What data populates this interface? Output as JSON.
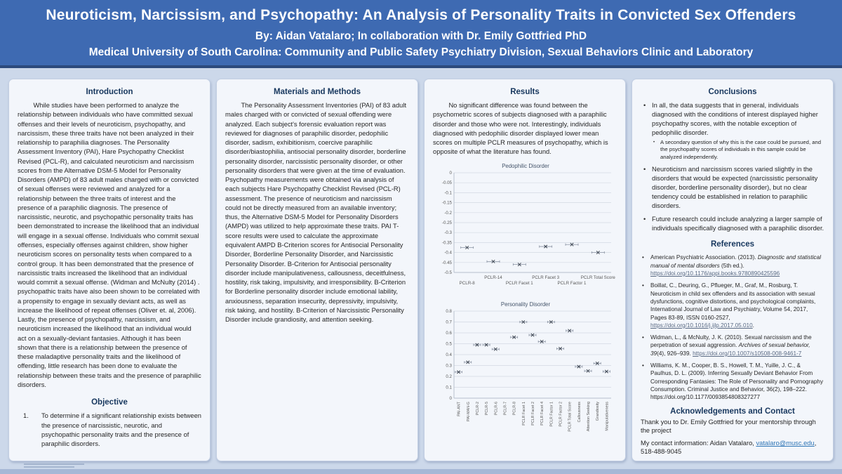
{
  "header": {
    "title": "Neuroticism, Narcissism, and Psychopathy: An Analysis of Personality Traits in Convicted Sex Offenders",
    "byline": "By: Aidan Vatalaro; In collaboration with Dr. Emily Gottfried PhD",
    "affiliation": "Medical University of South Carolina: Community and Public Safety Psychiatry Division, Sexual Behaviors Clinic and Laboratory"
  },
  "columns": {
    "introduction": {
      "heading": "Introduction",
      "body": "While studies have been performed to analyze the relationship between individuals who have committed sexual offenses and their levels of neuroticism, psychopathy, and narcissism, these three traits have not been analyzed in their relationship to paraphilia diagnoses. The Personality Assessment Inventory (PAI), Hare Psychopathy Checklist Revised (PCL-R), and calculated neuroticism and narcissism scores from the Alternative DSM-5 Model for Personality Disorders (AMPD) of 83 adult males charged with or convicted of sexual offenses were reviewed and analyzed for a relationship between the three traits of interest and the presence of a paraphilic diagnosis. The presence of narcissistic, neurotic, and psychopathic personality traits has been demonstrated to increase the likelihood that an individual will engage in a sexual offense. Individuals who commit sexual offenses, especially offenses against children, show higher neuroticism scores on personality tests when compared to a control group.  It has been demonstrated that the presence of narcissistic traits increased the likelihood that an individual would commit a sexual offense. (Widman and McNulty (2014) . psychopathic traits have also been shown to be correlated with a propensity to engage in sexually deviant acts, as well as increase the likelihood of repeat offenses (Oliver et. al, 2006). Lastly, the presence of psychopathy, narcissism, and neuroticism increased the likelihood that an individual would act on a sexually-deviant fantasies. Although it has been shown that there is a relationship between the presence of these maladaptive personality traits and the likelihood of offending, little research has been done to evaluate the relationship between these traits and the presence of paraphilic disorders."
    },
    "objective": {
      "heading": "Objective",
      "items": [
        {
          "number": "1.",
          "text": "To determine if a significant relationship exists between the presence of narcissistic, neurotic, and psychopathic personality traits and the presence of paraphilic disorders."
        }
      ]
    },
    "methods": {
      "heading": "Materials and Methods",
      "body": "The Personality Assessment Inventories (PAI) of 83 adult males charged with or convicted of sexual offending were analyzed. Each subject's forensic evaluation report was reviewed for diagnoses of paraphilic disorder, pedophilic disorder, sadism, exhibitionism, coercive paraphilic disorder/biastophilia, antisocial personality disorder, borderline personality disorder, narcissistic personality disorder, or other personality disorders that were given at the time of evaluation. Psychopathy measurements were obtained via analysis of each subjects Hare Psychopathy Checklist Revised (PCL-R) assessment. The presence of neuroticism and narcissism could not be directly measured from an available inventory; thus, the Alternative DSM-5 Model for Personality Disorders (AMPD) was utilized to help approximate these traits. PAI T-score results were used to calculate the approximate equivalent AMPD B-Criterion scores for Antisocial Personality Disorder, Borderline Personality Disorder, and Narcissistic Personality Disorder. B-Criterion for Antisocial personality disorder include manipulativeness, callousness, deceitfulness, hostility, risk taking, impulsivity, and irresponsibility. B-Criterion for Borderline personality disorder include emotional lability, anxiousness, separation insecurity, depressivity, impulsivity, risk taking, and hostility. B-Criterion of Narcissistic Personality Disorder include grandiosity, and attention seeking."
    },
    "results": {
      "heading": "Results",
      "body": "No significant difference was found between the psychometric scores of subjects diagnosed with a paraphilic disorder and those who were not. Interestingly, individuals diagnosed with pedophilic disorder displayed lower mean scores on multiple PCLR measures of psychopathy, which is opposite of what the literature has found."
    },
    "conclusions": {
      "heading": "Conclusions",
      "bullets": [
        "In all, the data suggests that in general, individuals diagnosed with the conditions of interest displayed higher psychopathy scores, with the notable exception of pedophilic disorder.",
        "Neuroticism and narcissism scores varied slightly in the disorders that would be expected (narcissistic personality disorder, borderline personality disorder), but no clear tendency could be established in relation to paraphilic disorders.",
        "Future research could include analyzing a larger sample of individuals specifically diagnosed with a paraphilic disorder."
      ],
      "sub_bullets": [
        "A secondary question of why this is the case could be pursued, and the psychopathy scores of individuals in this sample could be analyzed independently."
      ]
    },
    "references": {
      "heading": "References",
      "items": [
        {
          "parts": [
            "American Psychiatric Association. (2013). ",
            "Diagnostic and statistical manual of mental disorders",
            " (5th ed.). ",
            "https://doi.org/10.1176/appi.books.9780890425596"
          ]
        },
        {
          "parts": [
            "Boillat, C., Deuring, G., Pflueger, M., Graf, M., Rosburg, T. Neuroticism in child sex offenders and its association with sexual dysfunctions, cognitive distortions, and psychological complaints, International Journal of Law and Psychiatry, Volume 54, 2017, Pages 83-89, ISSN 0160-2527, ",
            "https://doi.org/10.1016/j.ijlp.2017.05.010",
            "."
          ]
        },
        {
          "parts": [
            "Widman, L., & McNulty, J. K. (2010). Sexual narcissism and the perpetration of sexual aggression. ",
            "Archives of sexual behavior, 39",
            "(4), 926–939. ",
            "https://doi.org/10.1007/s10508-008-9461-7"
          ]
        },
        {
          "parts": [
            "Williams, K. M., Cooper, B. S., Howell, T. M., Yuille, J. C., & Paulhus, D. L. (2009). Inferring Sexually Deviant Behavior From Corresponding Fantasies: The Role of Personality and Pornography Consumption. Criminal Justice and Behavior, 36(2), 198–222. https://doi.org/10.1177/0093854808327277"
          ]
        }
      ]
    },
    "acknowledgements": {
      "heading": "Acknowledgements and Contact",
      "line1": "Thank you to Dr. Emily Gottfried for your mentorship through the project",
      "contact_prefix": "My contact information: Aidan Vatalaro, ",
      "email": "vatalaro@musc.edu",
      "phone": ", 518-488-9045"
    }
  },
  "chart_data": [
    {
      "type": "scatter",
      "title": "Pedophilic Disorder",
      "categories": [
        "PCLR-8",
        "PCLR-14",
        "PCLR Facet 1",
        "PCLR Facet 3",
        "PCLR Factor 1",
        "PCLR Total Score"
      ],
      "values": [
        -0.375,
        -0.445,
        -0.46,
        -0.37,
        -0.36,
        -0.4
      ],
      "error_bars": "horizontal whiskers around each x marker",
      "marker": "x",
      "xlabel": "",
      "ylabel": "",
      "ylim": [
        -0.5,
        0
      ],
      "ytick_step": 0.05,
      "grid": true,
      "legend": false,
      "x_label_style": "staggered"
    },
    {
      "type": "scatter",
      "title": "Personality Disorder",
      "categories": [
        "PAI-ANT",
        "PAI-MAN-G",
        "PCLR-2",
        "PCLR-5",
        "PCLR-6",
        "PCLR-7",
        "PCLR-8",
        "PCLR Facet 1",
        "PCLR Facet 2",
        "PCLR Facet 4",
        "PCLR Factor 1",
        "PCLR Factor 2",
        "PCLR Total Score",
        "Callousness",
        "Attention Seeking",
        "Grandiosity",
        "Manipulativeness"
      ],
      "values": [
        0.24,
        0.33,
        0.49,
        0.49,
        0.45,
        null,
        0.56,
        0.7,
        0.58,
        0.52,
        0.7,
        0.455,
        0.62,
        0.29,
        0.25,
        0.32,
        0.245
      ],
      "error_bars": "horizontal whiskers around each x marker",
      "marker": "x",
      "xlabel": "",
      "ylabel": "",
      "ylim": [
        0,
        0.8
      ],
      "ytick_step": 0.1,
      "grid": true,
      "legend": false,
      "x_label_style": "rotated"
    }
  ],
  "colors": {
    "header_blue": "#3e6ab2",
    "header_border": "#2c4a7c",
    "page_background": "#ccd8ea",
    "panel_background": "#f3f6fb",
    "panel_border": "#c3cfe3",
    "heading_navy": "#17375e",
    "doi_link": "#5b6b84",
    "email_link": "#2e75b6"
  }
}
